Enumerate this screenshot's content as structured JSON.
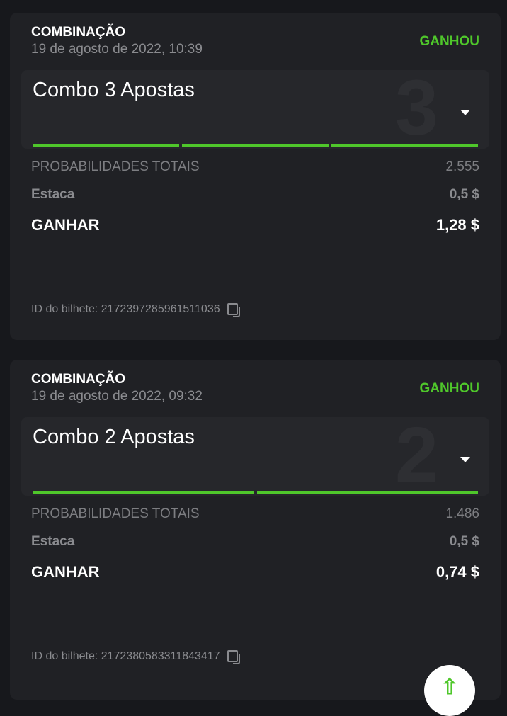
{
  "bets": [
    {
      "type": "COMBINAÇÃO",
      "date": "19 de agosto de 2022, 10:39",
      "status": "GANHOU",
      "combo": "Combo 3 Apostas",
      "count": "3",
      "odds_label": "PROBABILIDADES TOTAIS",
      "odds": "2.555",
      "stake_label": "Estaca",
      "stake": "0,5 $",
      "win_label": "GANHAR",
      "win": "1,28 $",
      "ticket": "ID do bilhete: 2172397285961511036"
    },
    {
      "type": "COMBINAÇÃO",
      "date": "19 de agosto de 2022, 09:32",
      "status": "GANHOU",
      "combo": "Combo 2 Apostas",
      "count": "2",
      "odds_label": "PROBABILIDADES TOTAIS",
      "odds": "1.486",
      "stake_label": "Estaca",
      "stake": "0,5 $",
      "win_label": "GANHAR",
      "win": "0,74 $",
      "ticket": "ID do bilhete: 2172380583311843417"
    }
  ],
  "colors": {
    "accent": "#4fc72b",
    "background": "#17181c",
    "card": "#202125"
  },
  "fab": {
    "icon": "arrow-up-icon",
    "glyph": "⇧"
  }
}
